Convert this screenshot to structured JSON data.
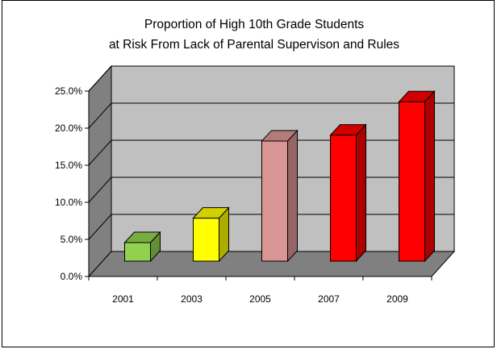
{
  "chart_data": {
    "type": "bar",
    "title_lines": [
      "Proportion of High 10th Grade Students",
      "at Risk From Lack of Parental Supervison and Rules"
    ],
    "categories": [
      "2001",
      "2003",
      "2005",
      "2007",
      "2009"
    ],
    "values": [
      2.5,
      5.8,
      16.2,
      17.0,
      21.5
    ],
    "unit": "%",
    "y_ticks": [
      "0.0%",
      "5.0%",
      "10.0%",
      "15.0%",
      "20.0%",
      "25.0%"
    ],
    "ylim": [
      0,
      25
    ],
    "grid": true,
    "legend": "none",
    "three_d": true,
    "bar_colors": [
      "#92d050",
      "#ffff00",
      "#da9694",
      "#ff0000",
      "#ff0000"
    ],
    "wall_color": "#c0c0c0",
    "side_wall_color": "#808080",
    "floor_color": "#808080"
  }
}
